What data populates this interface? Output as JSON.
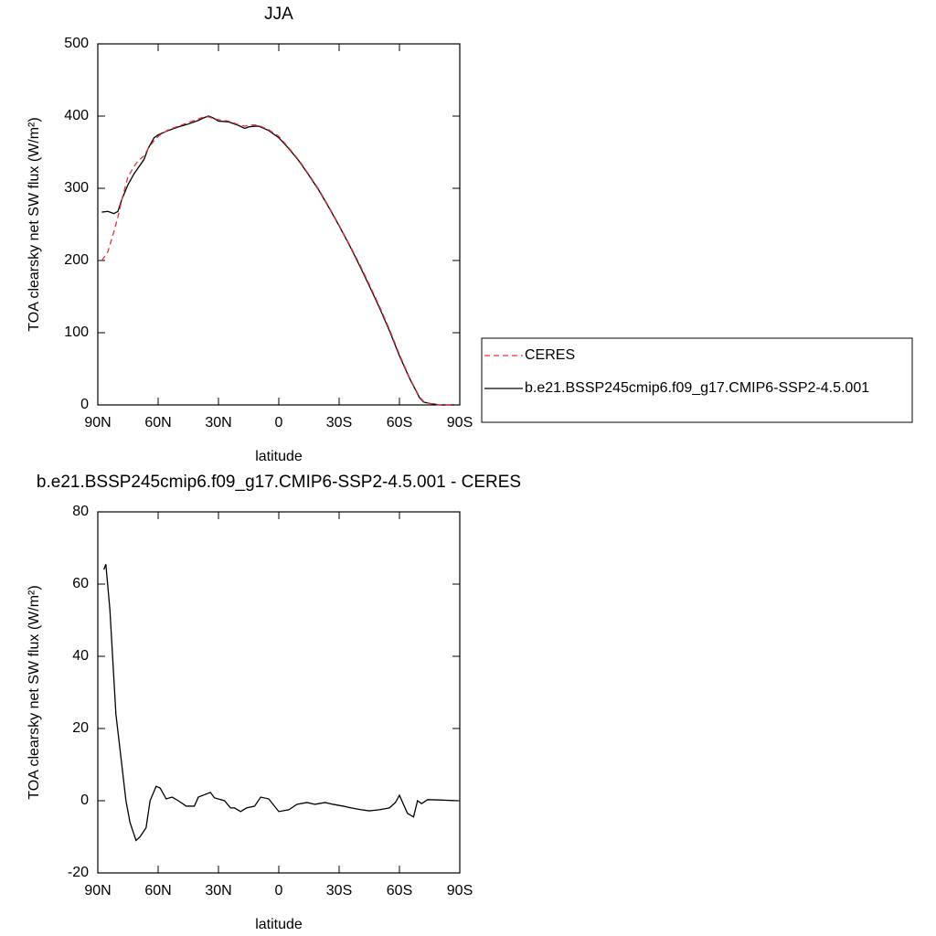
{
  "chart_data": [
    {
      "type": "line",
      "title": "JJA",
      "xlabel": "latitude",
      "ylabel": "TOA clearsky net SW flux (W/m²)",
      "x": [
        88,
        85,
        82,
        80,
        78,
        75,
        72,
        70,
        67,
        65,
        62,
        60,
        55,
        50,
        45,
        40,
        37,
        35,
        33,
        30,
        25,
        20,
        17,
        15,
        12,
        10,
        5,
        0,
        -5,
        -10,
        -15,
        -20,
        -25,
        -30,
        -35,
        -40,
        -45,
        -50,
        -55,
        -60,
        -65,
        -70,
        -72,
        -75,
        -80,
        -85,
        -88
      ],
      "series": [
        {
          "name": "CERES",
          "color": "#e8303a",
          "style": "dashed",
          "values": [
            200,
            212,
            240,
            260,
            285,
            316,
            330,
            338,
            345,
            355,
            366,
            372,
            381,
            386,
            391,
            396,
            399,
            399,
            397,
            395,
            393,
            388,
            386,
            387,
            388,
            387,
            381,
            372,
            356,
            339,
            319,
            298,
            274,
            249,
            223,
            196,
            167,
            137,
            105,
            70,
            38,
            11,
            5,
            2,
            0,
            0,
            0
          ]
        },
        {
          "name": "b.e21.BSSP245cmip6.f09_g17.CMIP6-SSP2-4.5.001",
          "color": "#000000",
          "style": "solid",
          "values": [
            267,
            268,
            265,
            268,
            285,
            305,
            320,
            328,
            340,
            355,
            370,
            374,
            380,
            385,
            389,
            394,
            398,
            400,
            398,
            393,
            392,
            387,
            383,
            385,
            386,
            386,
            380,
            370,
            355,
            338,
            318,
            297,
            273,
            248,
            222,
            194,
            165,
            135,
            103,
            68,
            37,
            10,
            4,
            2,
            0,
            0,
            0
          ]
        }
      ],
      "xlim": [
        90,
        -90
      ],
      "xticks": [
        {
          "value": 90,
          "label": "90N"
        },
        {
          "value": 60,
          "label": "60N"
        },
        {
          "value": 30,
          "label": "30N"
        },
        0,
        {
          "value": -30,
          "label": "30S"
        },
        {
          "value": -60,
          "label": "60S"
        },
        {
          "value": -90,
          "label": "90S"
        }
      ],
      "ylim": [
        0,
        500
      ],
      "yticks": [
        0,
        100,
        200,
        300,
        400,
        500
      ],
      "legend": "right"
    },
    {
      "type": "line",
      "title": "b.e21.BSSP245cmip6.f09_g17.CMIP6-SSP2-4.5.001 - CERES",
      "xlabel": "latitude",
      "ylabel": "TOA clearsky net SW flux (W/m²)",
      "x": [
        87,
        86,
        84,
        81,
        76,
        74,
        71,
        69,
        66,
        64,
        61,
        59,
        56,
        53,
        50,
        46,
        42,
        40,
        34,
        32,
        27,
        24,
        22,
        19,
        16,
        12,
        9,
        5,
        0,
        -5,
        -9,
        -14,
        -18,
        -23,
        -27,
        -32,
        -36,
        -41,
        -45,
        -50,
        -55,
        -58,
        -60,
        -64,
        -67,
        -69,
        -71,
        -74,
        -80,
        -89
      ],
      "values": [
        64,
        65.5,
        53,
        24,
        0,
        -6,
        -11,
        -10,
        -7.5,
        0,
        4,
        3.5,
        0.5,
        1,
        0,
        -1.5,
        -1.5,
        1,
        2.3,
        0.8,
        0,
        -2,
        -2,
        -3,
        -2,
        -1.5,
        1,
        0.5,
        -3,
        -2.5,
        -1,
        -0.5,
        -1,
        -0.5,
        -1,
        -1.5,
        -2,
        -2.5,
        -2.8,
        -2.5,
        -2,
        -0.5,
        1.5,
        -3.5,
        -4.5,
        0,
        -0.8,
        0.3,
        0.2,
        0
      ],
      "color": "#000000",
      "style": "solid",
      "xlim": [
        90,
        -90
      ],
      "xticks": [
        {
          "value": 90,
          "label": "90N"
        },
        {
          "value": 60,
          "label": "60N"
        },
        {
          "value": 30,
          "label": "30N"
        },
        0,
        {
          "value": -30,
          "label": "30S"
        },
        {
          "value": -60,
          "label": "60S"
        },
        {
          "value": -90,
          "label": "90S"
        }
      ],
      "ylim": [
        -20,
        80
      ],
      "yticks": [
        -20,
        0,
        20,
        40,
        60,
        80
      ]
    }
  ]
}
